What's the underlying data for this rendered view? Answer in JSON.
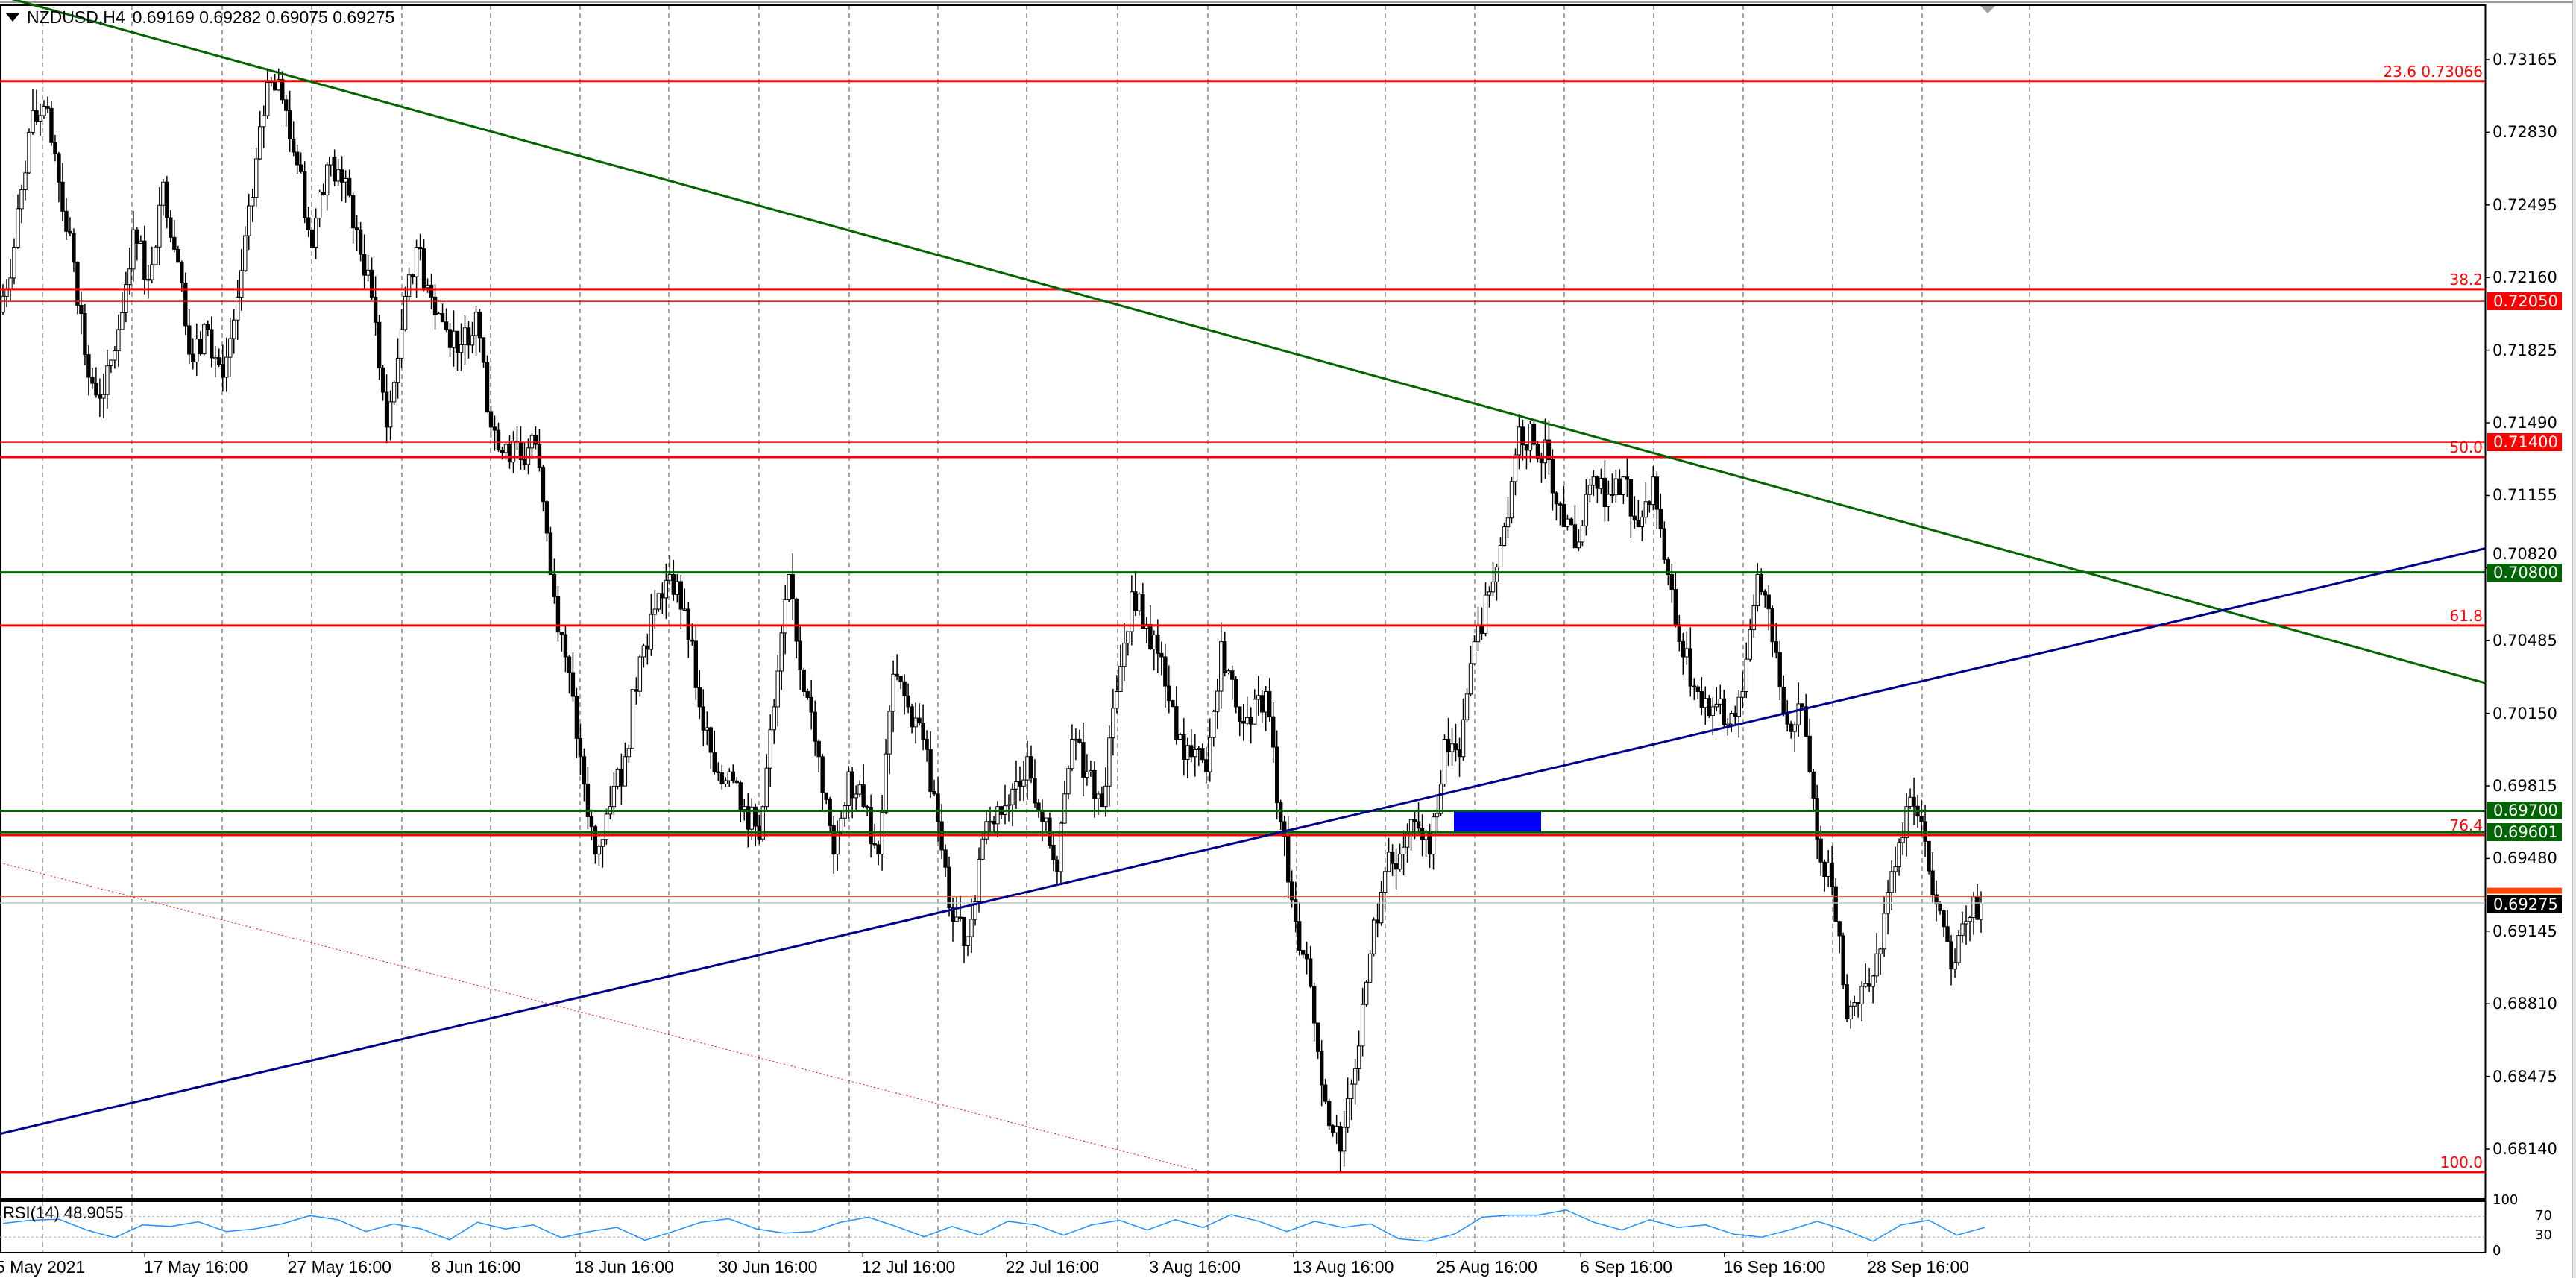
{
  "header": {
    "symbol": "NZDUSD,H4",
    "ohlc": "0.69169 0.69282 0.69075 0.69275"
  },
  "rsi": {
    "label": "RSI(14) 48.9055",
    "levels": [
      70,
      30
    ],
    "axis_labels": [
      "100",
      "70",
      "30",
      "0"
    ],
    "color": "#1e90ff"
  },
  "colors": {
    "fib": "#ff0000",
    "support": "#006400",
    "trend_down": "#006400",
    "trend_up": "#00008b",
    "zone": "#0000ff",
    "bid": "#000000",
    "ask_line": "#ff4500"
  },
  "chart_data": {
    "type": "candlestick",
    "title": "NZDUSD,H4",
    "ylim": [
      0.68,
      0.7335
    ],
    "y_ticks": [
      "0.73165",
      "0.72830",
      "0.72495",
      "0.72160",
      "0.71825",
      "0.71490",
      "0.71155",
      "0.70820",
      "0.70485",
      "0.70150",
      "0.69815",
      "0.69480",
      "0.69145",
      "0.68810",
      "0.68475",
      "0.68140"
    ],
    "x_labels": [
      "5 May 2021",
      "17 May 16:00",
      "27 May 16:00",
      "8 Jun 16:00",
      "18 Jun 16:00",
      "30 Jun 16:00",
      "12 Jul 16:00",
      "22 Jul 16:00",
      "3 Aug 16:00",
      "13 Aug 16:00",
      "25 Aug 16:00",
      "6 Sep 16:00",
      "16 Sep 16:00",
      "28 Sep 16:00"
    ],
    "grid": "vertical-dashed",
    "closes": [
      0.72,
      0.723,
      0.7283,
      0.7295,
      0.726,
      0.7223,
      0.717,
      0.7162,
      0.7192,
      0.7238,
      0.7215,
      0.726,
      0.7223,
      0.7177,
      0.7192,
      0.717,
      0.7207,
      0.7253,
      0.7306,
      0.7298,
      0.7268,
      0.723,
      0.7268,
      0.726,
      0.7238,
      0.7207,
      0.7147,
      0.7192,
      0.723,
      0.7207,
      0.7192,
      0.7185,
      0.72,
      0.7147,
      0.7139,
      0.7132,
      0.7139,
      0.7079,
      0.7041,
      0.6995,
      0.695,
      0.6972,
      0.6995,
      0.7041,
      0.7063,
      0.7079,
      0.7063,
      0.7018,
      0.6988,
      0.6988,
      0.6972,
      0.6957,
      0.7018,
      0.7079,
      0.7025,
      0.6995,
      0.695,
      0.6988,
      0.6972,
      0.695,
      0.7033,
      0.7018,
      0.7003,
      0.6965,
      0.6919,
      0.6912,
      0.6957,
      0.6972,
      0.698,
      0.6995,
      0.6965,
      0.6942,
      0.7003,
      0.6988,
      0.6972,
      0.7025,
      0.7071,
      0.7056,
      0.7041,
      0.7003,
      0.6995,
      0.6988,
      0.7048,
      0.7018,
      0.701,
      0.7025,
      0.6965,
      0.6919,
      0.6889,
      0.6836,
      0.6813,
      0.6851,
      0.6904,
      0.6942,
      0.695,
      0.6965,
      0.695,
      0.7003,
      0.6995,
      0.7048,
      0.7071,
      0.7101,
      0.7147,
      0.7139,
      0.7132,
      0.7101,
      0.7094,
      0.7124,
      0.7116,
      0.7124,
      0.7101,
      0.7124,
      0.7079,
      0.7041,
      0.7025,
      0.7018,
      0.701,
      0.7025,
      0.7079,
      0.7048,
      0.701,
      0.7018,
      0.6957,
      0.6935,
      0.6874,
      0.6889,
      0.6904,
      0.6942,
      0.6972,
      0.6965,
      0.6927,
      0.6897,
      0.6919,
      0.69275
    ],
    "rsi_values": [
      57,
      63,
      65,
      44,
      29,
      54,
      51,
      60,
      41,
      46,
      56,
      72,
      64,
      41,
      56,
      46,
      25,
      59,
      46,
      54,
      29,
      41,
      49,
      24,
      41,
      59,
      66,
      46,
      38,
      41,
      59,
      69,
      51,
      31,
      51,
      34,
      61,
      54,
      34,
      54,
      63,
      44,
      64,
      49,
      74,
      61,
      41,
      61,
      49,
      56,
      27,
      22,
      36,
      69,
      73,
      73,
      83,
      59,
      44,
      64,
      49,
      54,
      36,
      30,
      44,
      61,
      44,
      22,
      54,
      63,
      34,
      49
    ],
    "fib_levels": [
      {
        "label": "23.6 0.73066",
        "price": 0.73066
      },
      {
        "label": "38.2",
        "price": 0.72106
      },
      {
        "label": "50.0",
        "price": 0.71332
      },
      {
        "label": "61.8",
        "price": 0.70555
      },
      {
        "label": "76.4",
        "price": 0.69588
      },
      {
        "label": "100.0",
        "price": 0.68034
      }
    ],
    "price_levels": [
      {
        "label": "0.72050",
        "price": 0.7205,
        "color": "#ff0000"
      },
      {
        "label": "0.71400",
        "price": 0.714,
        "color": "#ff0000"
      },
      {
        "label": "0.70800",
        "price": 0.708,
        "color": "#006400"
      },
      {
        "label": "0.69700",
        "price": 0.697,
        "color": "#006400"
      },
      {
        "label": "0.69601",
        "price": 0.69601,
        "color": "#006400"
      }
    ],
    "ask_price": 0.69304,
    "bid": {
      "label": "0.69275",
      "price": 0.69275
    },
    "trendlines": [
      {
        "name": "descending",
        "start_price": 0.7346,
        "end_price": 0.7029,
        "color": "#006400",
        "style": "solid"
      },
      {
        "name": "ascending",
        "start_price": 0.6821,
        "end_price": 0.7091,
        "color": "#00008b",
        "style": "solid"
      },
      {
        "name": "dotted",
        "start_price": 0.6946,
        "end_price": 0.6804,
        "color": "#ff0000",
        "style": "dotted"
      }
    ],
    "zone": {
      "high": 0.697,
      "low": 0.696
    }
  }
}
